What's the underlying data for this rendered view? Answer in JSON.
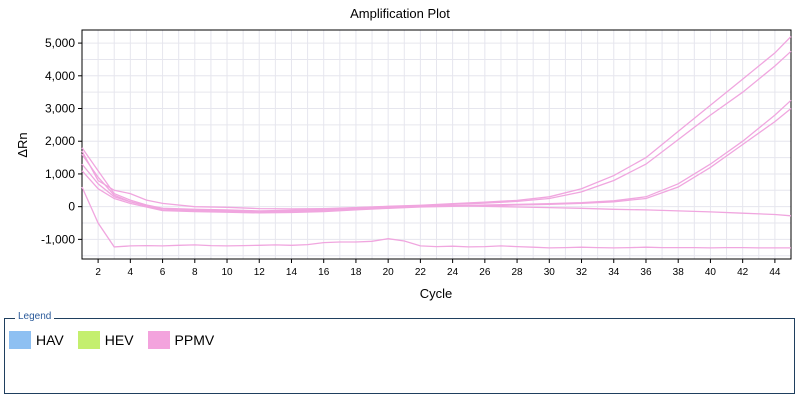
{
  "chart_data": {
    "type": "line",
    "title": "Amplification Plot",
    "xlabel": "Cycle",
    "ylabel": "ΔRn",
    "xlim": [
      1,
      45
    ],
    "ylim": [
      -1600,
      5400
    ],
    "x_ticks": [
      2,
      4,
      6,
      8,
      10,
      12,
      14,
      16,
      18,
      20,
      22,
      24,
      26,
      28,
      30,
      32,
      34,
      36,
      38,
      40,
      42,
      44
    ],
    "y_ticks": [
      -1000,
      0,
      1000,
      2000,
      3000,
      4000,
      5000
    ],
    "y_tick_labels": [
      "-1,000",
      "0",
      "1,000",
      "2,000",
      "3,000",
      "4,000",
      "5,000"
    ],
    "grid": true,
    "line_color": "#f0a6df",
    "series": [
      {
        "x": [
          1,
          2,
          3,
          4,
          5,
          6,
          8,
          10,
          12,
          14,
          16,
          18,
          20,
          22,
          24,
          26,
          28,
          30,
          32,
          34,
          36,
          38,
          40,
          42,
          44,
          45
        ],
        "values": [
          1800,
          1100,
          400,
          200,
          50,
          -50,
          -80,
          -100,
          -130,
          -110,
          -80,
          -30,
          10,
          40,
          90,
          140,
          190,
          300,
          550,
          950,
          1500,
          2300,
          3100,
          3900,
          4700,
          5200
        ]
      },
      {
        "x": [
          1,
          2,
          3,
          4,
          5,
          6,
          8,
          10,
          12,
          14,
          16,
          18,
          20,
          22,
          24,
          26,
          28,
          30,
          32,
          34,
          36,
          38,
          40,
          42,
          44,
          45
        ],
        "values": [
          1600,
          900,
          350,
          150,
          30,
          -60,
          -100,
          -120,
          -150,
          -130,
          -100,
          -50,
          0,
          30,
          70,
          110,
          160,
          250,
          450,
          800,
          1300,
          2050,
          2800,
          3500,
          4300,
          4750
        ]
      },
      {
        "x": [
          1,
          2,
          3,
          4,
          6,
          8,
          10,
          12,
          14,
          16,
          18,
          20,
          22,
          24,
          26,
          28,
          30,
          32,
          34,
          36,
          38,
          40,
          42,
          44,
          45
        ],
        "values": [
          1300,
          700,
          300,
          150,
          -100,
          -120,
          -150,
          -170,
          -160,
          -130,
          -80,
          -30,
          10,
          30,
          50,
          70,
          90,
          120,
          180,
          300,
          700,
          1300,
          2000,
          2800,
          3250
        ]
      },
      {
        "x": [
          1,
          2,
          3,
          4,
          6,
          8,
          10,
          12,
          14,
          16,
          18,
          20,
          22,
          24,
          26,
          28,
          30,
          32,
          34,
          36,
          38,
          40,
          42,
          44,
          45
        ],
        "values": [
          1100,
          550,
          250,
          100,
          -120,
          -150,
          -170,
          -190,
          -180,
          -150,
          -100,
          -50,
          -10,
          10,
          30,
          50,
          70,
          100,
          150,
          250,
          600,
          1200,
          1900,
          2600,
          3000
        ]
      },
      {
        "x": [
          1,
          2,
          3,
          4,
          5,
          6,
          8,
          10,
          12,
          14,
          16,
          18,
          20,
          22,
          24,
          26,
          28,
          30,
          32,
          34,
          36,
          38,
          40,
          42,
          44,
          45
        ],
        "values": [
          1700,
          800,
          500,
          400,
          200,
          100,
          0,
          -20,
          -60,
          -70,
          -60,
          -30,
          0,
          20,
          30,
          10,
          -10,
          -30,
          -50,
          -80,
          -100,
          -130,
          -160,
          -200,
          -240,
          -280
        ]
      },
      {
        "x": [
          1,
          2,
          3,
          4,
          5,
          6,
          7,
          8,
          9,
          10,
          11,
          12,
          13,
          14,
          15,
          16,
          17,
          18,
          19,
          20,
          21,
          22,
          23,
          24,
          25,
          26,
          27,
          28,
          29,
          30,
          31,
          32,
          33,
          34,
          35,
          36,
          37,
          38,
          39,
          40,
          41,
          42,
          43,
          44,
          45
        ],
        "values": [
          600,
          -500,
          -1230,
          -1200,
          -1190,
          -1200,
          -1180,
          -1170,
          -1190,
          -1200,
          -1190,
          -1180,
          -1170,
          -1180,
          -1160,
          -1100,
          -1080,
          -1080,
          -1060,
          -980,
          -1050,
          -1200,
          -1220,
          -1210,
          -1230,
          -1220,
          -1200,
          -1220,
          -1240,
          -1260,
          -1250,
          -1240,
          -1250,
          -1260,
          -1250,
          -1240,
          -1250,
          -1250,
          -1250,
          -1260,
          -1250,
          -1250,
          -1260,
          -1260,
          -1260
        ]
      }
    ]
  },
  "legend": {
    "title": "Legend",
    "items": [
      {
        "label": "HAV",
        "color": "#8ec0f2"
      },
      {
        "label": "HEV",
        "color": "#c4ef6e"
      },
      {
        "label": "PPMV",
        "color": "#f3a3dd"
      }
    ]
  }
}
